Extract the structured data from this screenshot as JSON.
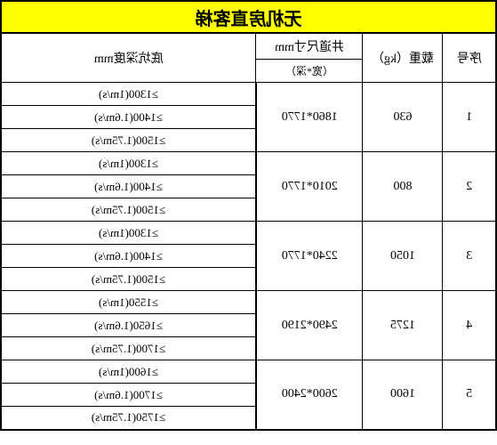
{
  "title": "无机房直客梯",
  "headers": {
    "seq": "序号",
    "load": "载重（kg）",
    "dim_main": "井道尺寸mm",
    "dim_sub": "（宽*深）",
    "depth": "底坑深度mm"
  },
  "rows": [
    {
      "seq": "1",
      "load": "630",
      "dim": "1860*1770",
      "depths": [
        "≥1300(1m/s)",
        "≥1400(1.6m/s)",
        "≥1500(1.75m/s)"
      ]
    },
    {
      "seq": "2",
      "load": "800",
      "dim": "2010*1770",
      "depths": [
        "≥1300(1m/s)",
        "≥1400(1.6m/s)",
        "≥1500(1.75m/s)"
      ]
    },
    {
      "seq": "3",
      "load": "1050",
      "dim": "2240*1770",
      "depths": [
        "≥1300(1m/s)",
        "≥1400(1.6m/s)",
        "≥1500(1.75m/s)"
      ]
    },
    {
      "seq": "4",
      "load": "1275",
      "dim": "2490*2190",
      "depths": [
        "≥1550(1m/s)",
        "≥1650(1.6m/s)",
        "≥1700(1.75m/s)"
      ]
    },
    {
      "seq": "5",
      "load": "1600",
      "dim": "2600*2400",
      "depths": [
        "≥1600(1m/s)",
        "≥1700(1.6m/s)",
        "≥1750(1.75m/s)"
      ]
    }
  ],
  "colors": {
    "title_bg": "#ffff00",
    "border": "#000000",
    "bg": "#ffffff"
  }
}
